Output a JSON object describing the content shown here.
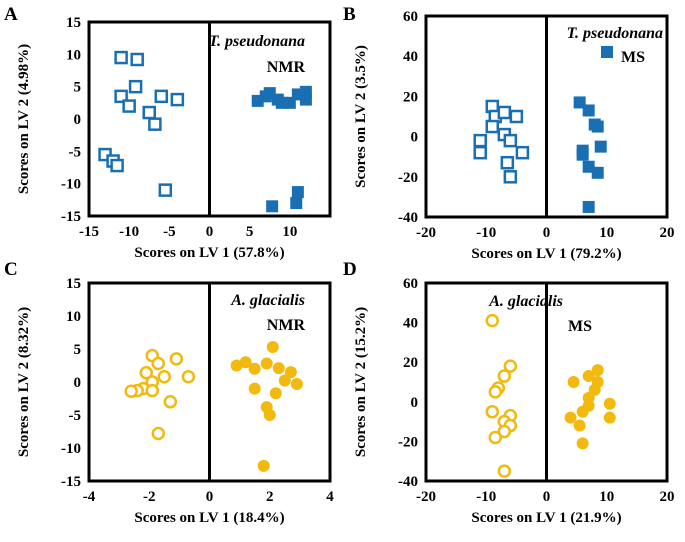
{
  "chart_data": [
    {
      "panel": "A",
      "type": "scatter",
      "marker": "square",
      "xlabel": "Scores on LV 1 (57.8%)",
      "ylabel": "Scores on LV 2 (4.98%)",
      "xlim": [
        -15,
        15
      ],
      "ylim": [
        -15,
        15
      ],
      "xticks": [
        -15,
        -10,
        -5,
        0,
        5,
        10
      ],
      "yticks": [
        -15,
        -10,
        -5,
        0,
        5,
        10,
        15
      ],
      "annotations": [
        {
          "text": "T. pseudonana",
          "style": "italic"
        },
        {
          "text": "NMR",
          "style": "bold"
        }
      ],
      "series": [
        {
          "name": "open",
          "filled": false,
          "color": "#1a6fb3",
          "points": [
            [
              -11,
              9.5
            ],
            [
              -9,
              9.2
            ],
            [
              -11,
              3.5
            ],
            [
              -9.2,
              5
            ],
            [
              -10,
              2
            ],
            [
              -7.5,
              1
            ],
            [
              -6.8,
              -0.8
            ],
            [
              -6,
              3.5
            ],
            [
              -4,
              3
            ],
            [
              -13,
              -5.5
            ],
            [
              -12,
              -6.5
            ],
            [
              -11.5,
              -7.2
            ],
            [
              -5.5,
              -11
            ]
          ]
        },
        {
          "name": "filled",
          "filled": true,
          "color": "#1a6fb3",
          "points": [
            [
              6,
              2.8
            ],
            [
              7,
              3.5
            ],
            [
              7.5,
              4
            ],
            [
              8.5,
              3
            ],
            [
              9,
              2.5
            ],
            [
              11,
              3.8
            ],
            [
              12,
              4.2
            ],
            [
              12,
              3
            ],
            [
              10,
              2.5
            ],
            [
              11,
              -11.3
            ],
            [
              10.8,
              -13
            ],
            [
              7.8,
              -13.5
            ]
          ]
        }
      ]
    },
    {
      "panel": "B",
      "type": "scatter",
      "marker": "square",
      "xlabel": "Scores on LV 1 (79.2%)",
      "ylabel": "Scores on LV 2 (3.5%)",
      "xlim": [
        -20,
        20
      ],
      "ylim": [
        -40,
        60
      ],
      "xticks": [
        -20,
        -10,
        0,
        10,
        20
      ],
      "yticks": [
        -40,
        -20,
        0,
        20,
        40,
        60
      ],
      "annotations": [
        {
          "text": "T. pseudonana",
          "style": "italic"
        },
        {
          "text": "MS",
          "style": "bold",
          "legend_marker": "filled-square"
        }
      ],
      "series": [
        {
          "name": "open",
          "filled": false,
          "color": "#1a6fb3",
          "points": [
            [
              -9,
              15
            ],
            [
              -8.5,
              10
            ],
            [
              -7,
              12
            ],
            [
              -5,
              10
            ],
            [
              -7,
              1
            ],
            [
              -9,
              5
            ],
            [
              -11,
              -2
            ],
            [
              -11,
              -8
            ],
            [
              -6.5,
              -13
            ],
            [
              -6,
              -2
            ],
            [
              -4,
              -8
            ],
            [
              -6,
              -20
            ]
          ]
        },
        {
          "name": "filled",
          "filled": true,
          "color": "#1a6fb3",
          "points": [
            [
              5.5,
              17
            ],
            [
              7,
              13
            ],
            [
              8,
              6
            ],
            [
              8.5,
              5
            ],
            [
              9,
              -5
            ],
            [
              6,
              -7
            ],
            [
              6,
              -9
            ],
            [
              7,
              -15
            ],
            [
              8.5,
              -18
            ],
            [
              7,
              -35
            ]
          ]
        }
      ]
    },
    {
      "panel": "C",
      "type": "scatter",
      "marker": "circle",
      "xlabel": "Scores on LV 1 (18.4%)",
      "ylabel": "Scores on LV 2 (8.32%)",
      "xlim": [
        -4,
        4
      ],
      "ylim": [
        -15,
        15
      ],
      "xticks": [
        -4,
        -2,
        0,
        2,
        4
      ],
      "yticks": [
        -15,
        -10,
        -5,
        0,
        5,
        10,
        15
      ],
      "annotations": [
        {
          "text": "A. glacialis",
          "style": "italic"
        },
        {
          "text": "NMR",
          "style": "bold"
        }
      ],
      "series": [
        {
          "name": "open",
          "filled": false,
          "color": "#f2b90f",
          "points": [
            [
              -1.9,
              4
            ],
            [
              -1.7,
              2.8
            ],
            [
              -1.1,
              3.5
            ],
            [
              -2.1,
              1.4
            ],
            [
              -1.5,
              0.8
            ],
            [
              -0.7,
              0.8
            ],
            [
              -1.9,
              0
            ],
            [
              -2.2,
              -1
            ],
            [
              -2.4,
              -1.3
            ],
            [
              -2.6,
              -1.4
            ],
            [
              -1.9,
              -1.3
            ],
            [
              -1.3,
              -3
            ],
            [
              -1.7,
              -7.8
            ]
          ]
        },
        {
          "name": "filled",
          "filled": true,
          "color": "#f2b90f",
          "points": [
            [
              0.9,
              2.5
            ],
            [
              1.2,
              3
            ],
            [
              1.5,
              2
            ],
            [
              1.9,
              2.8
            ],
            [
              2.1,
              5.3
            ],
            [
              2.3,
              2.1
            ],
            [
              2.7,
              1.5
            ],
            [
              2.5,
              0.2
            ],
            [
              2.9,
              -0.3
            ],
            [
              1.5,
              -1
            ],
            [
              2.2,
              -1.7
            ],
            [
              1.9,
              -3.8
            ],
            [
              2,
              -5
            ],
            [
              1.8,
              -12.7
            ]
          ]
        }
      ]
    },
    {
      "panel": "D",
      "type": "scatter",
      "marker": "circle",
      "xlabel": "Scores on LV 1 (21.9%)",
      "ylabel": "Scores on LV 2 (15.2%)",
      "xlim": [
        -20,
        20
      ],
      "ylim": [
        -40,
        60
      ],
      "xticks": [
        -20,
        -10,
        0,
        10,
        20
      ],
      "yticks": [
        -40,
        -20,
        0,
        20,
        40,
        60
      ],
      "annotations": [
        {
          "text": "A. glacialis",
          "style": "italic"
        },
        {
          "text": "MS",
          "style": "bold"
        }
      ],
      "series": [
        {
          "name": "open",
          "filled": false,
          "color": "#f2b90f",
          "points": [
            [
              -9,
              41
            ],
            [
              -6,
              18
            ],
            [
              -7,
              13
            ],
            [
              -8,
              7
            ],
            [
              -8.5,
              5
            ],
            [
              -9,
              -5
            ],
            [
              -6,
              -7
            ],
            [
              -7,
              -10
            ],
            [
              -6,
              -12
            ],
            [
              -7,
              -15
            ],
            [
              -8.5,
              -18
            ],
            [
              -7,
              -35
            ]
          ]
        },
        {
          "name": "filled",
          "filled": true,
          "color": "#f2b90f",
          "points": [
            [
              4.5,
              10
            ],
            [
              7,
              13
            ],
            [
              8.5,
              16
            ],
            [
              8.5,
              10
            ],
            [
              8,
              6
            ],
            [
              7,
              2
            ],
            [
              7,
              -2
            ],
            [
              6,
              -5
            ],
            [
              4,
              -8
            ],
            [
              10.5,
              -1
            ],
            [
              10.5,
              -8
            ],
            [
              5.5,
              -12
            ],
            [
              6,
              -21
            ]
          ]
        }
      ]
    }
  ]
}
